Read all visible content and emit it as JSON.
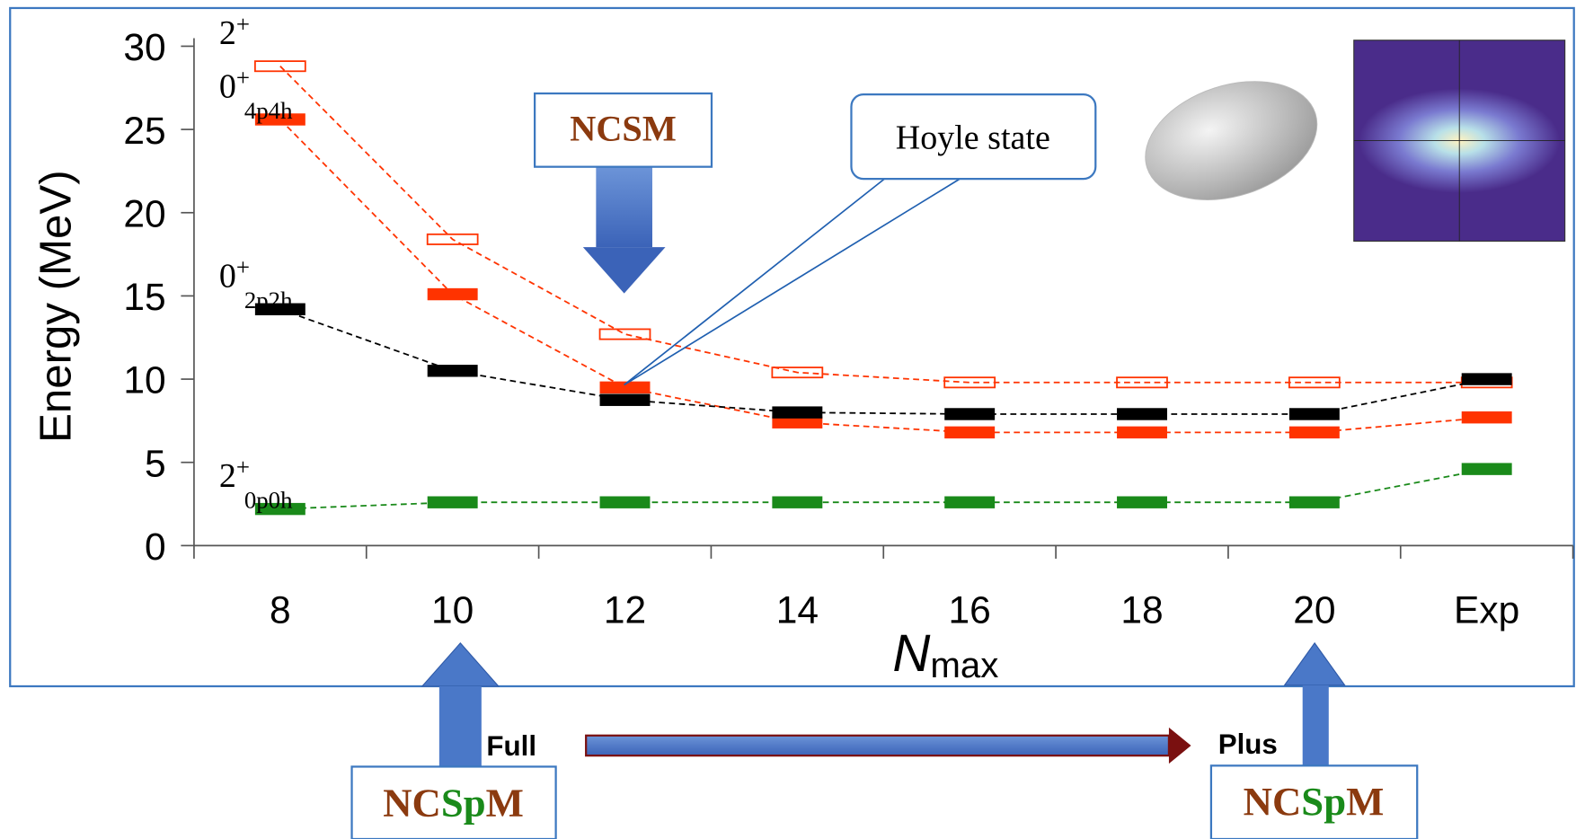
{
  "chart_data": {
    "type": "level",
    "ylabel": "Energy (MeV)",
    "xlabel": {
      "main": "N",
      "sub": "max"
    },
    "categories": [
      "8",
      "10",
      "12",
      "14",
      "16",
      "18",
      "20",
      "Exp"
    ],
    "ylim": [
      0,
      30
    ],
    "yticks": [
      0,
      5,
      10,
      15,
      20,
      25,
      30
    ],
    "series": [
      {
        "state": "2",
        "sup": "+",
        "color": "#ff3300",
        "hollow": true,
        "values": [
          28.8,
          18.4,
          12.7,
          10.4,
          9.8,
          9.8,
          9.8,
          9.8
        ]
      },
      {
        "state": "0",
        "sup": "+",
        "sub": "4p4h",
        "color": "#ff3300",
        "hollow": false,
        "values": [
          25.6,
          15.1,
          9.5,
          7.4,
          6.8,
          6.8,
          6.8,
          7.7
        ]
      },
      {
        "state": "0",
        "sup": "+",
        "sub": "2p2h",
        "color": "#000000",
        "hollow": false,
        "values": [
          14.2,
          10.5,
          8.75,
          8.0,
          7.9,
          7.9,
          7.9,
          10.0
        ]
      },
      {
        "state": "2",
        "sup": "+",
        "sub": "0p0h",
        "color": "#1a8a1a",
        "hollow": false,
        "values": [
          2.2,
          2.6,
          2.6,
          2.6,
          2.6,
          2.6,
          2.6,
          4.6
        ]
      }
    ]
  },
  "annotations": {
    "ncsm": "NCSM",
    "hoyle": "Hoyle state",
    "full": "Full",
    "plus": "Plus",
    "ncspm_left": [
      "NC",
      "Sp",
      "M"
    ],
    "ncspm_right": [
      "NC",
      "Sp",
      "M"
    ]
  }
}
